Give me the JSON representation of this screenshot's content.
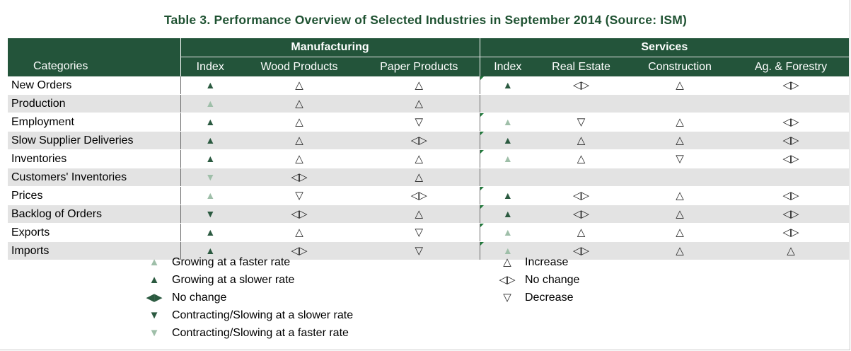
{
  "title": "Table 3. Performance Overview of Selected Industries in September 2014 (Source: ISM)",
  "header": {
    "manufacturing": "Manufacturing",
    "services": "Services",
    "columns": [
      "Categories",
      "Index",
      "Wood Products",
      "Paper Products",
      "Index",
      "Real Estate",
      "Construction",
      "Ag. & Forestry"
    ]
  },
  "symbols": {
    "growing_faster": "▲",
    "growing_slower": "▲",
    "no_change_solid": "◀▶",
    "contracting_slower": "▼",
    "contracting_faster": "▼",
    "increase": "△",
    "no_change": "◁▷",
    "decrease": "▽"
  },
  "rows": [
    {
      "category": "New Orders",
      "cells": [
        "growing_slower",
        "increase",
        "increase",
        "growing_slower",
        "no_change",
        "increase",
        "no_change"
      ]
    },
    {
      "category": "Production",
      "cells": [
        "growing_faster",
        "increase",
        "increase",
        "",
        "",
        "",
        ""
      ]
    },
    {
      "category": "Employment",
      "cells": [
        "growing_slower",
        "increase",
        "decrease",
        "growing_faster",
        "decrease",
        "increase",
        "no_change"
      ]
    },
    {
      "category": "Slow Supplier Deliveries",
      "cells": [
        "growing_slower",
        "increase",
        "no_change",
        "growing_slower",
        "increase",
        "increase",
        "no_change"
      ]
    },
    {
      "category": "Inventories",
      "cells": [
        "growing_slower",
        "increase",
        "increase",
        "growing_faster",
        "increase",
        "decrease",
        "no_change"
      ]
    },
    {
      "category": "Customers' Inventories",
      "cells": [
        "contracting_faster",
        "no_change",
        "increase",
        "",
        "",
        "",
        ""
      ]
    },
    {
      "category": "Prices",
      "cells": [
        "growing_faster",
        "decrease",
        "no_change",
        "growing_slower",
        "no_change",
        "increase",
        "no_change"
      ]
    },
    {
      "category": "Backlog of Orders",
      "cells": [
        "contracting_slower",
        "no_change",
        "increase",
        "growing_slower",
        "no_change",
        "increase",
        "no_change"
      ]
    },
    {
      "category": "Exports",
      "cells": [
        "growing_slower",
        "increase",
        "decrease",
        "growing_faster",
        "increase",
        "increase",
        "no_change"
      ]
    },
    {
      "category": "Imports",
      "cells": [
        "growing_slower",
        "no_change",
        "decrease",
        "growing_faster",
        "no_change",
        "increase",
        "increase"
      ]
    }
  ],
  "legend": {
    "left": [
      {
        "symbol": "growing_faster",
        "label": "Growing at a faster rate"
      },
      {
        "symbol": "growing_slower",
        "label": "Growing at a slower rate"
      },
      {
        "symbol": "no_change_solid",
        "label": "No change"
      },
      {
        "symbol": "contracting_slower",
        "label": "Contracting/Slowing at a slower rate"
      },
      {
        "symbol": "contracting_faster",
        "label": "Contracting/Slowing at a faster rate"
      }
    ],
    "right": [
      {
        "symbol": "increase",
        "label": "Increase"
      },
      {
        "symbol": "no_change",
        "label": "No change"
      },
      {
        "symbol": "decrease",
        "label": "Decrease"
      }
    ]
  },
  "colors": {
    "header_bg": "#23543a",
    "title": "#1f5232",
    "solid_dark": "#2b5a40",
    "solid_light": "#9fbfa9",
    "row_alt": "#e3e3e3"
  }
}
